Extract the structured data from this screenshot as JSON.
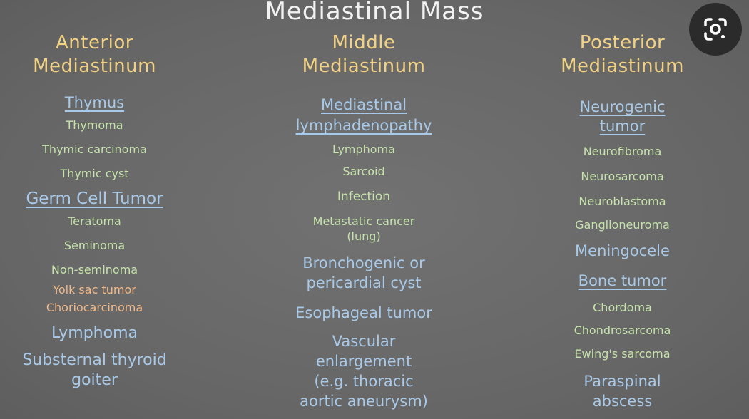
{
  "title": "Mediastinal Mass",
  "lens_icon": "google-lens-icon",
  "anterior": {
    "heading": [
      "Anterior",
      "Mediastinum"
    ],
    "items": [
      "Thymus",
      "Thymoma",
      "Thymic carcinoma",
      "Thymic cyst",
      "Germ Cell Tumor",
      "Teratoma",
      "Seminoma",
      "Non-seminoma",
      "Yolk sac tumor",
      "Choriocarcinoma",
      "Lymphoma",
      "Substernal thyroid",
      "goiter"
    ]
  },
  "middle": {
    "heading": [
      "Middle",
      "Mediastinum"
    ],
    "items": [
      "Mediastinal",
      "lymphadenopathy",
      "Lymphoma",
      "Sarcoid",
      "Infection",
      "Metastatic cancer",
      "(lung)",
      "Bronchogenic or",
      "pericardial cyst",
      "Esophageal tumor",
      "Vascular",
      "enlargement",
      "(e.g. thoracic",
      "aortic aneurysm)"
    ]
  },
  "posterior": {
    "heading": [
      "Posterior",
      "Mediastinum"
    ],
    "items": [
      "Neurogenic",
      "tumor",
      "Neurofibroma",
      "Neurosarcoma",
      "Neuroblastoma",
      "Ganglioneuroma",
      "Meningocele",
      "Bone tumor",
      "Chordoma",
      "Chondrosarcoma",
      "Ewing's sarcoma",
      "Paraspinal",
      "abscess"
    ]
  },
  "colors": {
    "background": "#6b6b6b",
    "heading": "#f1d284",
    "blue": "#a9c9e8",
    "green": "#c7e3ab",
    "orange": "#f0b98a"
  }
}
